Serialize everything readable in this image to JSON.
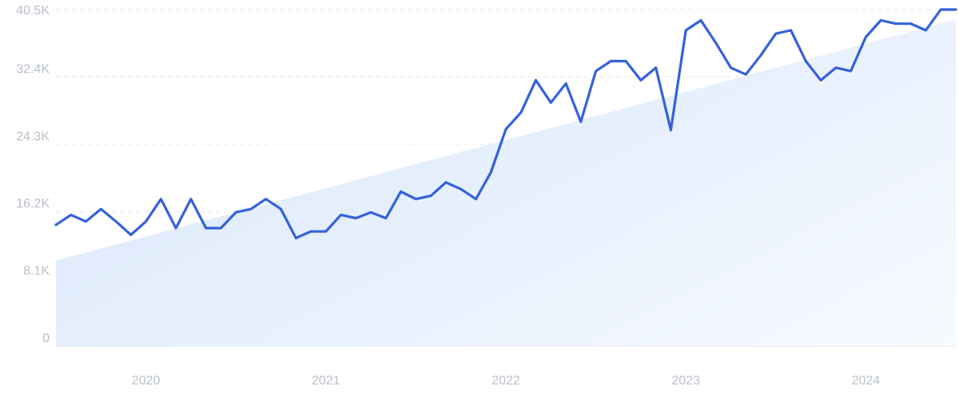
{
  "chart_data": {
    "type": "line",
    "title": "",
    "xlabel": "",
    "ylabel": "",
    "y_ticks": [
      {
        "value": 0,
        "label": "0"
      },
      {
        "value": 8100,
        "label": "8.1K"
      },
      {
        "value": 16200,
        "label": "16.2K"
      },
      {
        "value": 24300,
        "label": "24.3K"
      },
      {
        "value": 32400,
        "label": "32.4K"
      },
      {
        "value": 40500,
        "label": "40.5K"
      }
    ],
    "x_ticks": [
      {
        "value": "2020-01",
        "label": "2020"
      },
      {
        "value": "2021-01",
        "label": "2021"
      },
      {
        "value": "2022-01",
        "label": "2022"
      },
      {
        "value": "2023-01",
        "label": "2023"
      },
      {
        "value": "2024-01",
        "label": "2024"
      }
    ],
    "xlim": [
      "2019-07",
      "2024-07"
    ],
    "ylim": [
      0,
      40500
    ],
    "grid": true,
    "trend": {
      "start": {
        "x": "2019-07",
        "y": 10300
      },
      "end": {
        "x": "2024-07",
        "y": 39300
      }
    },
    "series": [
      {
        "x": [
          "2019-07",
          "2019-08",
          "2019-09",
          "2019-10",
          "2019-11",
          "2019-12",
          "2020-01",
          "2020-02",
          "2020-03",
          "2020-04",
          "2020-05",
          "2020-06",
          "2020-07",
          "2020-08",
          "2020-09",
          "2020-10",
          "2020-11",
          "2020-12",
          "2021-01",
          "2021-02",
          "2021-03",
          "2021-04",
          "2021-05",
          "2021-06",
          "2021-07",
          "2021-08",
          "2021-09",
          "2021-10",
          "2021-11",
          "2021-12",
          "2022-01",
          "2022-02",
          "2022-03",
          "2022-04",
          "2022-05",
          "2022-06",
          "2022-07",
          "2022-08",
          "2022-09",
          "2022-10",
          "2022-11",
          "2022-12",
          "2023-01",
          "2023-02",
          "2023-03",
          "2023-04",
          "2023-05",
          "2023-06",
          "2023-07",
          "2023-08",
          "2023-09",
          "2023-10",
          "2023-11",
          "2023-12",
          "2024-01",
          "2024-02",
          "2024-03",
          "2024-04",
          "2024-05",
          "2024-06",
          "2024-07"
        ],
        "values": [
          14600,
          15800,
          15000,
          16500,
          15000,
          13400,
          15000,
          17700,
          14200,
          17700,
          14200,
          14200,
          16100,
          16500,
          17700,
          16500,
          13000,
          13800,
          13800,
          15800,
          15400,
          16100,
          15400,
          18600,
          17700,
          18100,
          19700,
          18900,
          17700,
          20900,
          26100,
          28100,
          32000,
          29300,
          31600,
          27000,
          33100,
          34300,
          34300,
          32000,
          33500,
          26000,
          38000,
          39200,
          36500,
          33500,
          32700,
          35000,
          37600,
          38000,
          34300,
          32000,
          33500,
          33100,
          37200,
          39200,
          38800,
          38800,
          38000,
          40500,
          40500
        ]
      }
    ]
  }
}
